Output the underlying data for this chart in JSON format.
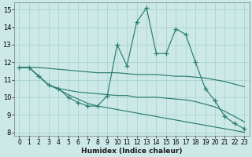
{
  "xlabel": "Humidex (Indice chaleur)",
  "xlim": [
    -0.5,
    23.5
  ],
  "ylim": [
    7.8,
    15.4
  ],
  "yticks": [
    8,
    9,
    10,
    11,
    12,
    13,
    14,
    15
  ],
  "xticks": [
    0,
    1,
    2,
    3,
    4,
    5,
    6,
    7,
    8,
    9,
    10,
    11,
    12,
    13,
    14,
    15,
    16,
    17,
    18,
    19,
    20,
    21,
    22,
    23
  ],
  "bg_color": "#cce9e7",
  "line_color": "#2a7d6e",
  "grid_color": "#aad4d0",
  "lines": [
    {
      "x": [
        0,
        1,
        2,
        3,
        4,
        5,
        6,
        7,
        8,
        9,
        10,
        11,
        12,
        13,
        14,
        15,
        16,
        17,
        18,
        19,
        20,
        21,
        22,
        23
      ],
      "y": [
        11.7,
        11.7,
        11.2,
        10.7,
        10.5,
        10.0,
        9.7,
        9.5,
        9.5,
        10.1,
        13.0,
        11.8,
        14.3,
        15.1,
        12.5,
        12.5,
        13.9,
        13.6,
        12.0,
        10.5,
        9.8,
        8.9,
        8.5,
        8.2
      ],
      "marker": true
    },
    {
      "x": [
        0,
        1,
        2,
        3,
        4,
        5,
        6,
        7,
        8,
        9,
        10,
        11,
        12,
        13,
        14,
        15,
        16,
        17,
        18,
        19,
        20,
        21,
        22,
        23
      ],
      "y": [
        11.7,
        11.7,
        11.7,
        11.65,
        11.6,
        11.55,
        11.5,
        11.45,
        11.4,
        11.4,
        11.4,
        11.35,
        11.3,
        11.3,
        11.3,
        11.25,
        11.2,
        11.2,
        11.15,
        11.1,
        11.0,
        10.9,
        10.75,
        10.6
      ],
      "marker": false
    },
    {
      "x": [
        0,
        1,
        2,
        3,
        4,
        5,
        6,
        7,
        8,
        9,
        10,
        11,
        12,
        13,
        14,
        15,
        16,
        17,
        18,
        19,
        20,
        21,
        22,
        23
      ],
      "y": [
        11.7,
        11.7,
        11.2,
        10.7,
        10.5,
        10.4,
        10.3,
        10.25,
        10.2,
        10.15,
        10.1,
        10.1,
        10.0,
        10.0,
        10.0,
        9.95,
        9.9,
        9.85,
        9.75,
        9.6,
        9.45,
        9.2,
        8.9,
        8.6
      ],
      "marker": false
    },
    {
      "x": [
        0,
        1,
        2,
        3,
        4,
        5,
        6,
        7,
        8,
        9,
        10,
        11,
        12,
        13,
        14,
        15,
        16,
        17,
        18,
        19,
        20,
        21,
        22,
        23
      ],
      "y": [
        11.7,
        11.7,
        11.2,
        10.7,
        10.45,
        10.15,
        9.9,
        9.65,
        9.5,
        9.4,
        9.3,
        9.2,
        9.1,
        9.0,
        8.9,
        8.8,
        8.7,
        8.6,
        8.5,
        8.4,
        8.3,
        8.2,
        8.1,
        8.0
      ],
      "marker": false
    }
  ]
}
